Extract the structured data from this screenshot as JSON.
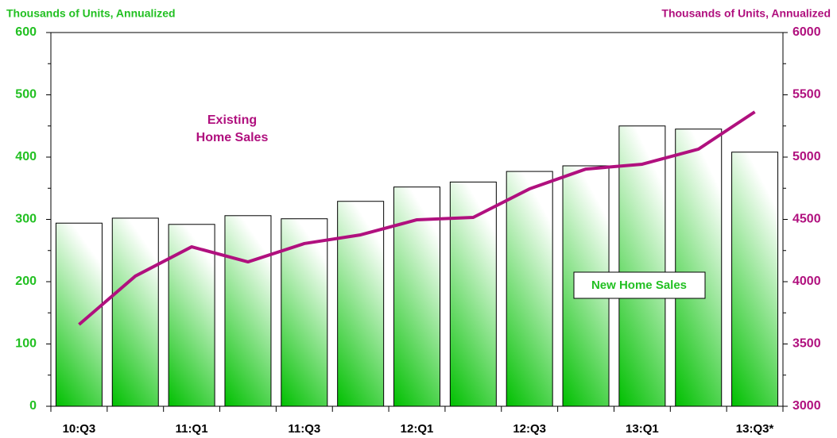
{
  "chart_data": {
    "type": "bar_line",
    "y_label": "Thousands of Units, Annualized",
    "y2_label": "Thousands of Units, Annualized",
    "categories": [
      "10:Q3",
      null,
      "11:Q1",
      null,
      "11:Q3",
      null,
      "12:Q1",
      null,
      "12:Q3",
      null,
      "13:Q1",
      null,
      "13:Q3*"
    ],
    "series": [
      {
        "name": "New Home Sales",
        "type": "bar",
        "color": "#00c800",
        "axis": "y",
        "values": [
          294,
          302,
          292,
          306,
          301,
          329,
          352,
          360,
          377,
          386,
          450,
          445,
          408
        ]
      },
      {
        "name_lines": [
          "Existing",
          "Home Sales"
        ],
        "type": "line",
        "color": "#b0107e",
        "axis": "y2",
        "values": [
          3656,
          4045,
          4280,
          4159,
          4306,
          4376,
          4497,
          4516,
          4745,
          4904,
          4943,
          5064,
          5363
        ]
      }
    ],
    "ylim": [
      0,
      600
    ],
    "yticks": [
      0,
      100,
      200,
      300,
      400,
      500,
      600
    ],
    "y2lim": [
      3000,
      6000
    ],
    "y2ticks": [
      3000,
      3500,
      4000,
      4500,
      5000,
      5500,
      6000
    ]
  }
}
